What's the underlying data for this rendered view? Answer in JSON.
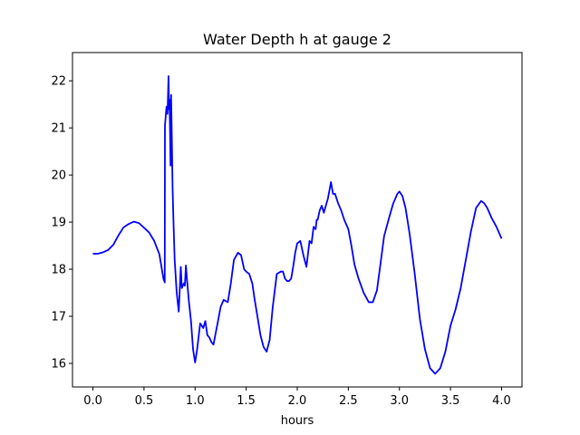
{
  "chart_data": {
    "type": "line",
    "title": "Water Depth h at gauge 2",
    "xlabel": "hours",
    "ylabel": "",
    "xlim": [
      -0.2,
      4.2
    ],
    "ylim": [
      15.5,
      22.6
    ],
    "xticks": [
      0.0,
      0.5,
      1.0,
      1.5,
      2.0,
      2.5,
      3.0,
      3.5,
      4.0
    ],
    "xtick_labels": [
      "0.0",
      "0.5",
      "1.0",
      "1.5",
      "2.0",
      "2.5",
      "3.0",
      "3.5",
      "4.0"
    ],
    "yticks": [
      16,
      17,
      18,
      19,
      20,
      21,
      22
    ],
    "ytick_labels": [
      "16",
      "17",
      "18",
      "19",
      "20",
      "21",
      "22"
    ],
    "grid": false,
    "series": [
      {
        "color": "#0000ff",
        "x": [
          0.0,
          0.05,
          0.1,
          0.15,
          0.2,
          0.25,
          0.3,
          0.35,
          0.4,
          0.45,
          0.5,
          0.55,
          0.6,
          0.65,
          0.69,
          0.703,
          0.705,
          0.72,
          0.73,
          0.74,
          0.745,
          0.75,
          0.76,
          0.765,
          0.77,
          0.78,
          0.79,
          0.8,
          0.82,
          0.84,
          0.86,
          0.87,
          0.88,
          0.89,
          0.9,
          0.91,
          0.92,
          0.94,
          0.96,
          0.98,
          1.0,
          1.02,
          1.05,
          1.08,
          1.1,
          1.12,
          1.14,
          1.16,
          1.18,
          1.22,
          1.25,
          1.28,
          1.32,
          1.35,
          1.38,
          1.42,
          1.45,
          1.48,
          1.5,
          1.53,
          1.56,
          1.58,
          1.61,
          1.64,
          1.67,
          1.7,
          1.73,
          1.76,
          1.8,
          1.84,
          1.86,
          1.88,
          1.9,
          1.92,
          1.94,
          1.96,
          1.98,
          2.0,
          2.03,
          2.06,
          2.09,
          2.12,
          2.14,
          2.16,
          2.18,
          2.19,
          2.2,
          2.22,
          2.24,
          2.26,
          2.28,
          2.3,
          2.33,
          2.35,
          2.37,
          2.4,
          2.43,
          2.46,
          2.5,
          2.53,
          2.56,
          2.6,
          2.65,
          2.7,
          2.74,
          2.78,
          2.82,
          2.85,
          2.9,
          2.94,
          2.98,
          3.0,
          3.03,
          3.06,
          3.1,
          3.15,
          3.2,
          3.25,
          3.3,
          3.35,
          3.4,
          3.45,
          3.5,
          3.55,
          3.6,
          3.65,
          3.7,
          3.75,
          3.8,
          3.83,
          3.86,
          3.9,
          3.95,
          4.0
        ],
        "y": [
          18.33,
          18.33,
          18.36,
          18.41,
          18.52,
          18.72,
          18.89,
          18.96,
          19.01,
          18.98,
          18.88,
          18.78,
          18.6,
          18.32,
          17.8,
          17.72,
          21.05,
          21.45,
          21.3,
          22.1,
          21.4,
          21.6,
          20.2,
          21.7,
          21.1,
          19.7,
          18.9,
          18.2,
          17.5,
          17.1,
          18.05,
          17.6,
          17.65,
          17.7,
          17.65,
          18.08,
          17.8,
          17.3,
          16.9,
          16.3,
          16.02,
          16.3,
          16.85,
          16.75,
          16.9,
          16.6,
          16.55,
          16.45,
          16.4,
          16.85,
          17.2,
          17.35,
          17.3,
          17.7,
          18.2,
          18.35,
          18.3,
          18.0,
          17.95,
          17.9,
          17.7,
          17.4,
          17.0,
          16.6,
          16.35,
          16.25,
          16.5,
          17.2,
          17.9,
          17.95,
          17.95,
          17.8,
          17.75,
          17.75,
          17.8,
          18.05,
          18.35,
          18.55,
          18.6,
          18.3,
          18.05,
          18.6,
          18.55,
          18.9,
          18.85,
          19.05,
          19.05,
          19.25,
          19.35,
          19.2,
          19.35,
          19.5,
          19.85,
          19.6,
          19.6,
          19.4,
          19.25,
          19.05,
          18.85,
          18.5,
          18.1,
          17.8,
          17.5,
          17.3,
          17.3,
          17.55,
          18.2,
          18.7,
          19.1,
          19.4,
          19.6,
          19.65,
          19.55,
          19.3,
          18.75,
          17.9,
          16.95,
          16.3,
          15.9,
          15.78,
          15.9,
          16.25,
          16.8,
          17.15,
          17.6,
          18.2,
          18.8,
          19.3,
          19.45,
          19.4,
          19.3,
          19.1,
          18.9,
          18.65
        ]
      }
    ]
  }
}
